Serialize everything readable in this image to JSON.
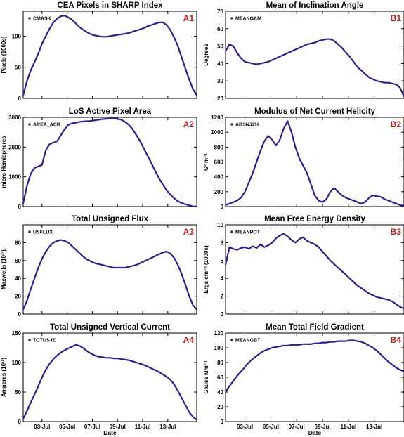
{
  "chart_data": [
    {
      "type": "line",
      "panel_id": "A1",
      "title": "CEA Pixels in SHARP Index",
      "series_name": "CMASK",
      "ylabel": "Pixels (1000s)",
      "xlabel": "",
      "ylim": [
        0,
        140
      ],
      "yticks": [
        0,
        50,
        100
      ],
      "xlim": [
        0,
        13.8
      ],
      "xticks": [
        1.5,
        3.5,
        5.5,
        7.5,
        9.5,
        11.5
      ],
      "xticklabels": [
        "03-Jul",
        "05-Jul",
        "07-Jul",
        "09-Jul",
        "11-Jul",
        "13-Jul"
      ],
      "x": [
        0,
        0.3,
        0.6,
        0.9,
        1.2,
        1.5,
        1.8,
        2.1,
        2.4,
        2.7,
        3.0,
        3.3,
        3.6,
        3.9,
        4.2,
        4.5,
        4.8,
        5.1,
        5.4,
        5.7,
        6.0,
        6.3,
        6.6,
        6.9,
        7.2,
        7.5,
        7.8,
        8.1,
        8.4,
        8.7,
        9.0,
        9.3,
        9.6,
        9.9,
        10.2,
        10.5,
        10.8,
        11.1,
        11.4,
        11.7,
        12.0,
        12.3,
        12.6,
        12.9,
        13.2,
        13.5,
        13.8
      ],
      "values": [
        5,
        28,
        45,
        58,
        72,
        88,
        100,
        112,
        122,
        128,
        132,
        133,
        130,
        126,
        120,
        114,
        110,
        106,
        103,
        101,
        100,
        99,
        99,
        100,
        101,
        102,
        103,
        104,
        105,
        107,
        109,
        111,
        113,
        116,
        118,
        120,
        122,
        122,
        118,
        110,
        98,
        84,
        66,
        48,
        30,
        15,
        5
      ]
    },
    {
      "type": "line",
      "panel_id": "B1",
      "title": "Mean of Inclination Angle",
      "series_name": "MEANGAM",
      "ylabel": "Degrees",
      "xlabel": "",
      "ylim": [
        20,
        70
      ],
      "yticks": [
        20,
        30,
        40,
        50,
        60,
        70
      ],
      "xlim": [
        0,
        13.8
      ],
      "xticks": [
        1.5,
        3.5,
        5.5,
        7.5,
        9.5,
        11.5
      ],
      "xticklabels": [
        "03-Jul",
        "05-Jul",
        "07-Jul",
        "09-Jul",
        "11-Jul",
        "13-Jul"
      ],
      "x": [
        0,
        0.3,
        0.6,
        0.9,
        1.2,
        1.5,
        1.8,
        2.1,
        2.4,
        2.7,
        3.0,
        3.3,
        3.6,
        3.9,
        4.2,
        4.5,
        4.8,
        5.1,
        5.4,
        5.7,
        6.0,
        6.3,
        6.6,
        6.9,
        7.2,
        7.5,
        7.8,
        8.1,
        8.4,
        8.7,
        9.0,
        9.3,
        9.6,
        9.9,
        10.2,
        10.5,
        10.8,
        11.1,
        11.4,
        11.7,
        12.0,
        12.3,
        12.6,
        12.9,
        13.2,
        13.5,
        13.8
      ],
      "values": [
        47,
        51,
        50,
        46,
        43,
        41,
        40.5,
        40,
        39.5,
        40,
        40.5,
        41,
        42,
        43,
        44,
        45,
        46,
        47,
        48,
        49,
        50,
        51,
        51.5,
        52,
        53,
        53.5,
        54,
        54,
        53,
        51,
        49,
        46.5,
        44,
        41,
        38,
        36,
        34,
        32,
        31,
        30,
        29.5,
        29,
        29,
        28.5,
        28,
        26,
        21
      ]
    },
    {
      "type": "line",
      "panel_id": "A2",
      "title": "LoS Active Pixel Area",
      "series_name": "AREA_ACR",
      "ylabel": "micro Hemispheres",
      "xlabel": "",
      "ylim": [
        0,
        3000
      ],
      "yticks": [
        0,
        1000,
        2000,
        3000
      ],
      "xlim": [
        0,
        13.8
      ],
      "xticks": [
        1.5,
        3.5,
        5.5,
        7.5,
        9.5,
        11.5
      ],
      "xticklabels": [
        "03-Jul",
        "05-Jul",
        "07-Jul",
        "09-Jul",
        "11-Jul",
        "13-Jul"
      ],
      "x": [
        0,
        0.3,
        0.6,
        0.9,
        1.2,
        1.5,
        1.8,
        2.1,
        2.4,
        2.7,
        3.0,
        3.3,
        3.6,
        3.9,
        4.2,
        4.5,
        4.8,
        5.1,
        5.4,
        5.7,
        6.0,
        6.3,
        6.6,
        6.9,
        7.2,
        7.5,
        7.8,
        8.1,
        8.4,
        8.7,
        9.0,
        9.3,
        9.6,
        9.9,
        10.2,
        10.5,
        10.8,
        11.1,
        11.4,
        11.7,
        12.0,
        12.3,
        12.6,
        12.9,
        13.2,
        13.5,
        13.8
      ],
      "values": [
        100,
        700,
        1100,
        1300,
        1350,
        1400,
        1900,
        2100,
        2150,
        2200,
        2400,
        2600,
        2750,
        2800,
        2820,
        2850,
        2860,
        2870,
        2880,
        2900,
        2920,
        2940,
        2950,
        2960,
        2960,
        2950,
        2920,
        2850,
        2750,
        2600,
        2400,
        2200,
        1950,
        1700,
        1450,
        1200,
        950,
        750,
        550,
        400,
        280,
        180,
        120,
        80,
        40,
        10,
        0
      ]
    },
    {
      "type": "line",
      "panel_id": "B2",
      "title": "Modulus of Net Current Helicity",
      "series_name": "ABSNJZH",
      "ylabel": "G² m⁻¹",
      "xlabel": "",
      "ylim": [
        0,
        1200
      ],
      "yticks": [
        0,
        200,
        400,
        600,
        800,
        1000,
        1200
      ],
      "xlim": [
        0,
        13.8
      ],
      "xticks": [
        1.5,
        3.5,
        5.5,
        7.5,
        9.5,
        11.5
      ],
      "xticklabels": [
        "03-Jul",
        "05-Jul",
        "07-Jul",
        "09-Jul",
        "11-Jul",
        "13-Jul"
      ],
      "x": [
        0,
        0.3,
        0.6,
        0.9,
        1.2,
        1.5,
        1.8,
        2.1,
        2.4,
        2.7,
        3.0,
        3.3,
        3.6,
        3.9,
        4.2,
        4.5,
        4.8,
        5.1,
        5.4,
        5.7,
        6.0,
        6.3,
        6.6,
        6.9,
        7.2,
        7.5,
        7.8,
        8.1,
        8.4,
        8.7,
        9.0,
        9.3,
        9.6,
        9.9,
        10.2,
        10.5,
        10.8,
        11.1,
        11.4,
        11.7,
        12.0,
        12.3,
        12.6,
        12.9,
        13.2,
        13.5,
        13.8
      ],
      "values": [
        20,
        40,
        60,
        80,
        120,
        200,
        320,
        450,
        600,
        750,
        880,
        950,
        900,
        820,
        900,
        1050,
        1150,
        1000,
        800,
        650,
        550,
        450,
        300,
        150,
        80,
        60,
        100,
        200,
        250,
        200,
        150,
        120,
        100,
        80,
        60,
        40,
        60,
        120,
        150,
        140,
        130,
        100,
        80,
        60,
        40,
        20,
        10
      ]
    },
    {
      "type": "line",
      "panel_id": "A3",
      "title": "Total Unsigned Flux",
      "series_name": "USFLUX",
      "ylabel": "Maxwells (10²¹)",
      "xlabel": "",
      "ylim": [
        0,
        100
      ],
      "yticks": [
        0,
        20,
        40,
        60,
        80
      ],
      "xlim": [
        0,
        13.8
      ],
      "xticks": [
        1.5,
        3.5,
        5.5,
        7.5,
        9.5,
        11.5
      ],
      "xticklabels": [
        "03-Jul",
        "05-Jul",
        "07-Jul",
        "09-Jul",
        "11-Jul",
        "13-Jul"
      ],
      "x": [
        0,
        0.3,
        0.6,
        0.9,
        1.2,
        1.5,
        1.8,
        2.1,
        2.4,
        2.7,
        3.0,
        3.3,
        3.6,
        3.9,
        4.2,
        4.5,
        4.8,
        5.1,
        5.4,
        5.7,
        6.0,
        6.3,
        6.6,
        6.9,
        7.2,
        7.5,
        7.8,
        8.1,
        8.4,
        8.7,
        9.0,
        9.3,
        9.6,
        9.9,
        10.2,
        10.5,
        10.8,
        11.1,
        11.4,
        11.7,
        12.0,
        12.3,
        12.6,
        12.9,
        13.2,
        13.5,
        13.8
      ],
      "values": [
        5,
        15,
        28,
        40,
        52,
        62,
        70,
        76,
        80,
        82,
        83,
        82,
        80,
        76,
        72,
        68,
        64,
        61,
        59,
        57,
        56,
        55,
        54,
        53,
        52,
        52,
        52,
        52,
        53,
        54,
        55,
        57,
        59,
        61,
        63,
        65,
        67,
        69,
        70,
        68,
        63,
        55,
        45,
        33,
        20,
        10,
        5
      ]
    },
    {
      "type": "line",
      "panel_id": "B3",
      "title": "Mean Free Energy Density",
      "series_name": "MEANPOT",
      "ylabel": "Ergs cm⁻³ (1000s)",
      "xlabel": "",
      "ylim": [
        0,
        10
      ],
      "yticks": [
        0,
        2,
        4,
        6,
        8,
        10
      ],
      "xlim": [
        0,
        13.8
      ],
      "xticks": [
        1.5,
        3.5,
        5.5,
        7.5,
        9.5,
        11.5
      ],
      "xticklabels": [
        "03-Jul",
        "05-Jul",
        "07-Jul",
        "09-Jul",
        "11-Jul",
        "13-Jul"
      ],
      "x": [
        0,
        0.3,
        0.6,
        0.9,
        1.2,
        1.5,
        1.8,
        2.1,
        2.4,
        2.7,
        3.0,
        3.3,
        3.6,
        3.9,
        4.2,
        4.5,
        4.8,
        5.1,
        5.4,
        5.7,
        6.0,
        6.3,
        6.6,
        6.9,
        7.2,
        7.5,
        7.8,
        8.1,
        8.4,
        8.7,
        9.0,
        9.3,
        9.6,
        9.9,
        10.2,
        10.5,
        10.8,
        11.1,
        11.4,
        11.7,
        12.0,
        12.3,
        12.6,
        12.9,
        13.2,
        13.5,
        13.8
      ],
      "values": [
        5.5,
        7.5,
        7.3,
        7.2,
        7.4,
        7.5,
        7.3,
        7.6,
        7.4,
        7.8,
        7.5,
        7.7,
        8,
        8.5,
        8.8,
        9,
        8.7,
        8.3,
        8,
        8.4,
        8.6,
        8.2,
        8,
        7.8,
        7.5,
        7,
        6.5,
        6,
        5.6,
        5.2,
        4.8,
        4.4,
        4,
        3.6,
        3.2,
        2.9,
        2.6,
        2.3,
        2.1,
        1.9,
        1.8,
        1.7,
        1.6,
        1.4,
        1.1,
        0.8,
        0.6
      ]
    },
    {
      "type": "line",
      "panel_id": "A4",
      "title": "Total Unsigned Vertical Current",
      "series_name": "TOTUSJZ",
      "ylabel": "Amperes (10¹²)",
      "xlabel": "Date",
      "ylim": [
        0,
        150
      ],
      "yticks": [
        0,
        50,
        100,
        150
      ],
      "xlim": [
        0,
        13.8
      ],
      "xticks": [
        1.5,
        3.5,
        5.5,
        7.5,
        9.5,
        11.5
      ],
      "xticklabels": [
        "03-Jul",
        "05-Jul",
        "07-Jul",
        "09-Jul",
        "11-Jul",
        "13-Jul"
      ],
      "x": [
        0,
        0.3,
        0.6,
        0.9,
        1.2,
        1.5,
        1.8,
        2.1,
        2.4,
        2.7,
        3.0,
        3.3,
        3.6,
        3.9,
        4.2,
        4.5,
        4.8,
        5.1,
        5.4,
        5.7,
        6.0,
        6.3,
        6.6,
        6.9,
        7.2,
        7.5,
        7.8,
        8.1,
        8.4,
        8.7,
        9.0,
        9.3,
        9.6,
        9.9,
        10.2,
        10.5,
        10.8,
        11.1,
        11.4,
        11.7,
        12.0,
        12.3,
        12.6,
        12.9,
        13.2,
        13.5,
        13.8
      ],
      "values": [
        5,
        18,
        32,
        46,
        60,
        75,
        88,
        98,
        106,
        112,
        117,
        121,
        124,
        127,
        130,
        128,
        124,
        119,
        115,
        112,
        110,
        109,
        108,
        108,
        107,
        107,
        106,
        105,
        104,
        102,
        100,
        98,
        96,
        93,
        90,
        87,
        84,
        80,
        76,
        71,
        63,
        52,
        40,
        28,
        16,
        8,
        3
      ]
    },
    {
      "type": "line",
      "panel_id": "B4",
      "title": "Mean Total Field Gradient",
      "series_name": "MEANGBT",
      "ylabel": "Gauss Mm⁻¹",
      "xlabel": "Date",
      "ylim": [
        0,
        120
      ],
      "yticks": [
        0,
        20,
        40,
        60,
        80,
        100,
        120
      ],
      "xlim": [
        0,
        13.8
      ],
      "xticks": [
        1.5,
        3.5,
        5.5,
        7.5,
        9.5,
        11.5
      ],
      "xticklabels": [
        "03-Jul",
        "05-Jul",
        "07-Jul",
        "09-Jul",
        "11-Jul",
        "13-Jul"
      ],
      "x": [
        0,
        0.3,
        0.6,
        0.9,
        1.2,
        1.5,
        1.8,
        2.1,
        2.4,
        2.7,
        3.0,
        3.3,
        3.6,
        3.9,
        4.2,
        4.5,
        4.8,
        5.1,
        5.4,
        5.7,
        6.0,
        6.3,
        6.6,
        6.9,
        7.2,
        7.5,
        7.8,
        8.1,
        8.4,
        8.7,
        9.0,
        9.3,
        9.6,
        9.9,
        10.2,
        10.5,
        10.8,
        11.1,
        11.4,
        11.7,
        12.0,
        12.3,
        12.6,
        12.9,
        13.2,
        13.5,
        13.8
      ],
      "values": [
        40,
        48,
        55,
        62,
        68,
        74,
        80,
        85,
        89,
        93,
        96,
        98,
        100,
        101,
        102,
        103,
        103,
        104,
        104,
        104,
        105,
        105,
        105,
        106,
        106,
        107,
        107,
        108,
        108,
        109,
        109,
        109,
        110,
        110,
        109,
        108,
        106,
        103,
        100,
        96,
        91,
        86,
        81,
        77,
        73,
        70,
        68
      ]
    }
  ],
  "style": {
    "line_color": "#3b1a8c",
    "frame_color": "#000000",
    "tag_color": "#b22222"
  }
}
